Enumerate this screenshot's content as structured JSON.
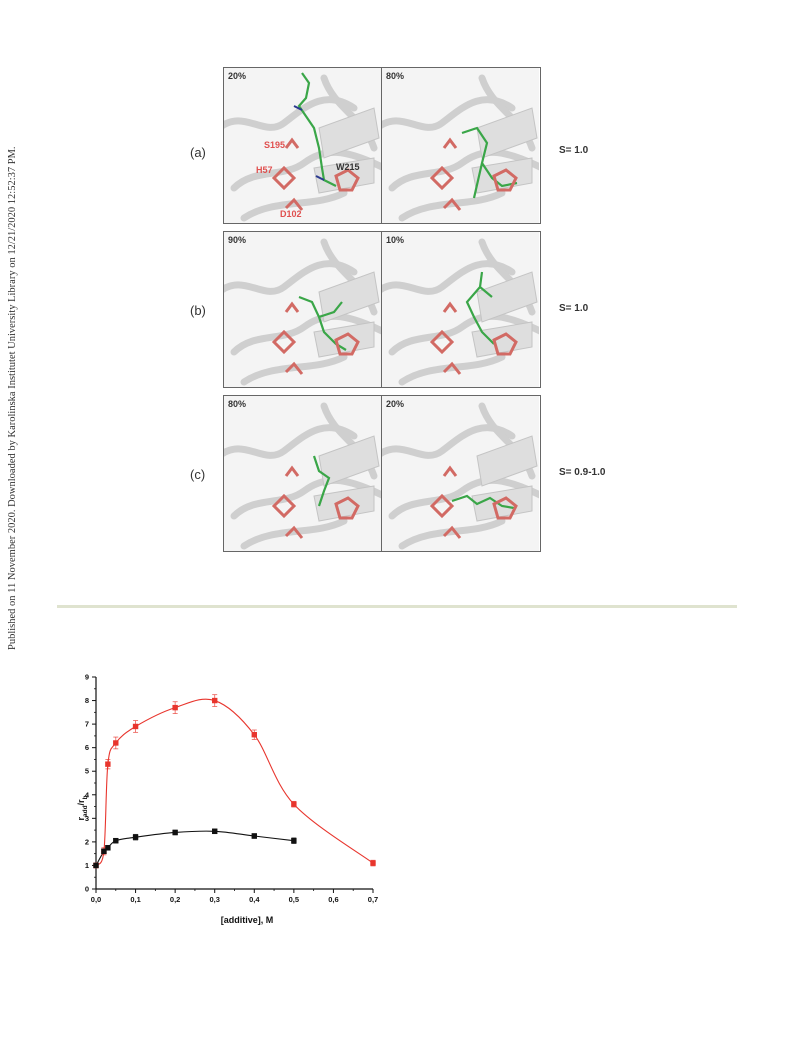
{
  "side_note": "Published on 11 November 2020. Downloaded by Karolinska Institutet University Library on 12/21/2020 12:52:37 PM.",
  "figure": {
    "rows": [
      {
        "label": "(a)",
        "left_pct": "20%",
        "right_pct": "80%",
        "s_value": "S= 1.0"
      },
      {
        "label": "(b)",
        "left_pct": "90%",
        "right_pct": "10%",
        "s_value": "S= 1.0"
      },
      {
        "label": "(c)",
        "left_pct": "80%",
        "right_pct": "20%",
        "s_value": "S= 0.9-1.0"
      }
    ],
    "residues": {
      "s195": "S195",
      "h57": "H57",
      "d102": "D102",
      "w215": "W215"
    },
    "colors": {
      "ribbon": "#c9c9c9",
      "catalytic": "#d26a64",
      "ligand": "#3aa648",
      "nitrogen": "#2b3a8f",
      "oxygen": "#d33"
    }
  },
  "chart_data": {
    "type": "line",
    "xlabel": "[additive], M",
    "ylabel": "r",
    "ylabel_sub1": "add",
    "ylabel_mid": "/r",
    "ylabel_sub2": "b",
    "xlim": [
      0,
      0.7
    ],
    "ylim": [
      0,
      9
    ],
    "x_ticks": [
      "0,0",
      "0,1",
      "0,2",
      "0,3",
      "0,4",
      "0,5",
      "0,6",
      "0,7"
    ],
    "y_ticks": [
      "0",
      "1",
      "2",
      "3",
      "4",
      "5",
      "6",
      "7",
      "8",
      "9"
    ],
    "series": [
      {
        "color": "#e8352d",
        "marker": "square",
        "x": [
          0,
          0.02,
          0.03,
          0.05,
          0.1,
          0.2,
          0.3,
          0.4,
          0.5,
          0.7
        ],
        "y": [
          1.0,
          1.6,
          5.3,
          6.2,
          6.9,
          7.7,
          8.0,
          6.55,
          3.6,
          1.1
        ],
        "err": [
          0.1,
          0.15,
          0.2,
          0.25,
          0.25,
          0.25,
          0.25,
          0.2,
          0.12,
          0.12
        ]
      },
      {
        "color": "#111111",
        "marker": "square",
        "x": [
          0,
          0.02,
          0.03,
          0.05,
          0.1,
          0.2,
          0.3,
          0.4,
          0.5
        ],
        "y": [
          1.0,
          1.6,
          1.75,
          2.05,
          2.2,
          2.4,
          2.45,
          2.25,
          2.05
        ],
        "err": [
          0.08,
          0.1,
          0.1,
          0.1,
          0.12,
          0.1,
          0.1,
          0.1,
          0.12
        ]
      }
    ]
  }
}
